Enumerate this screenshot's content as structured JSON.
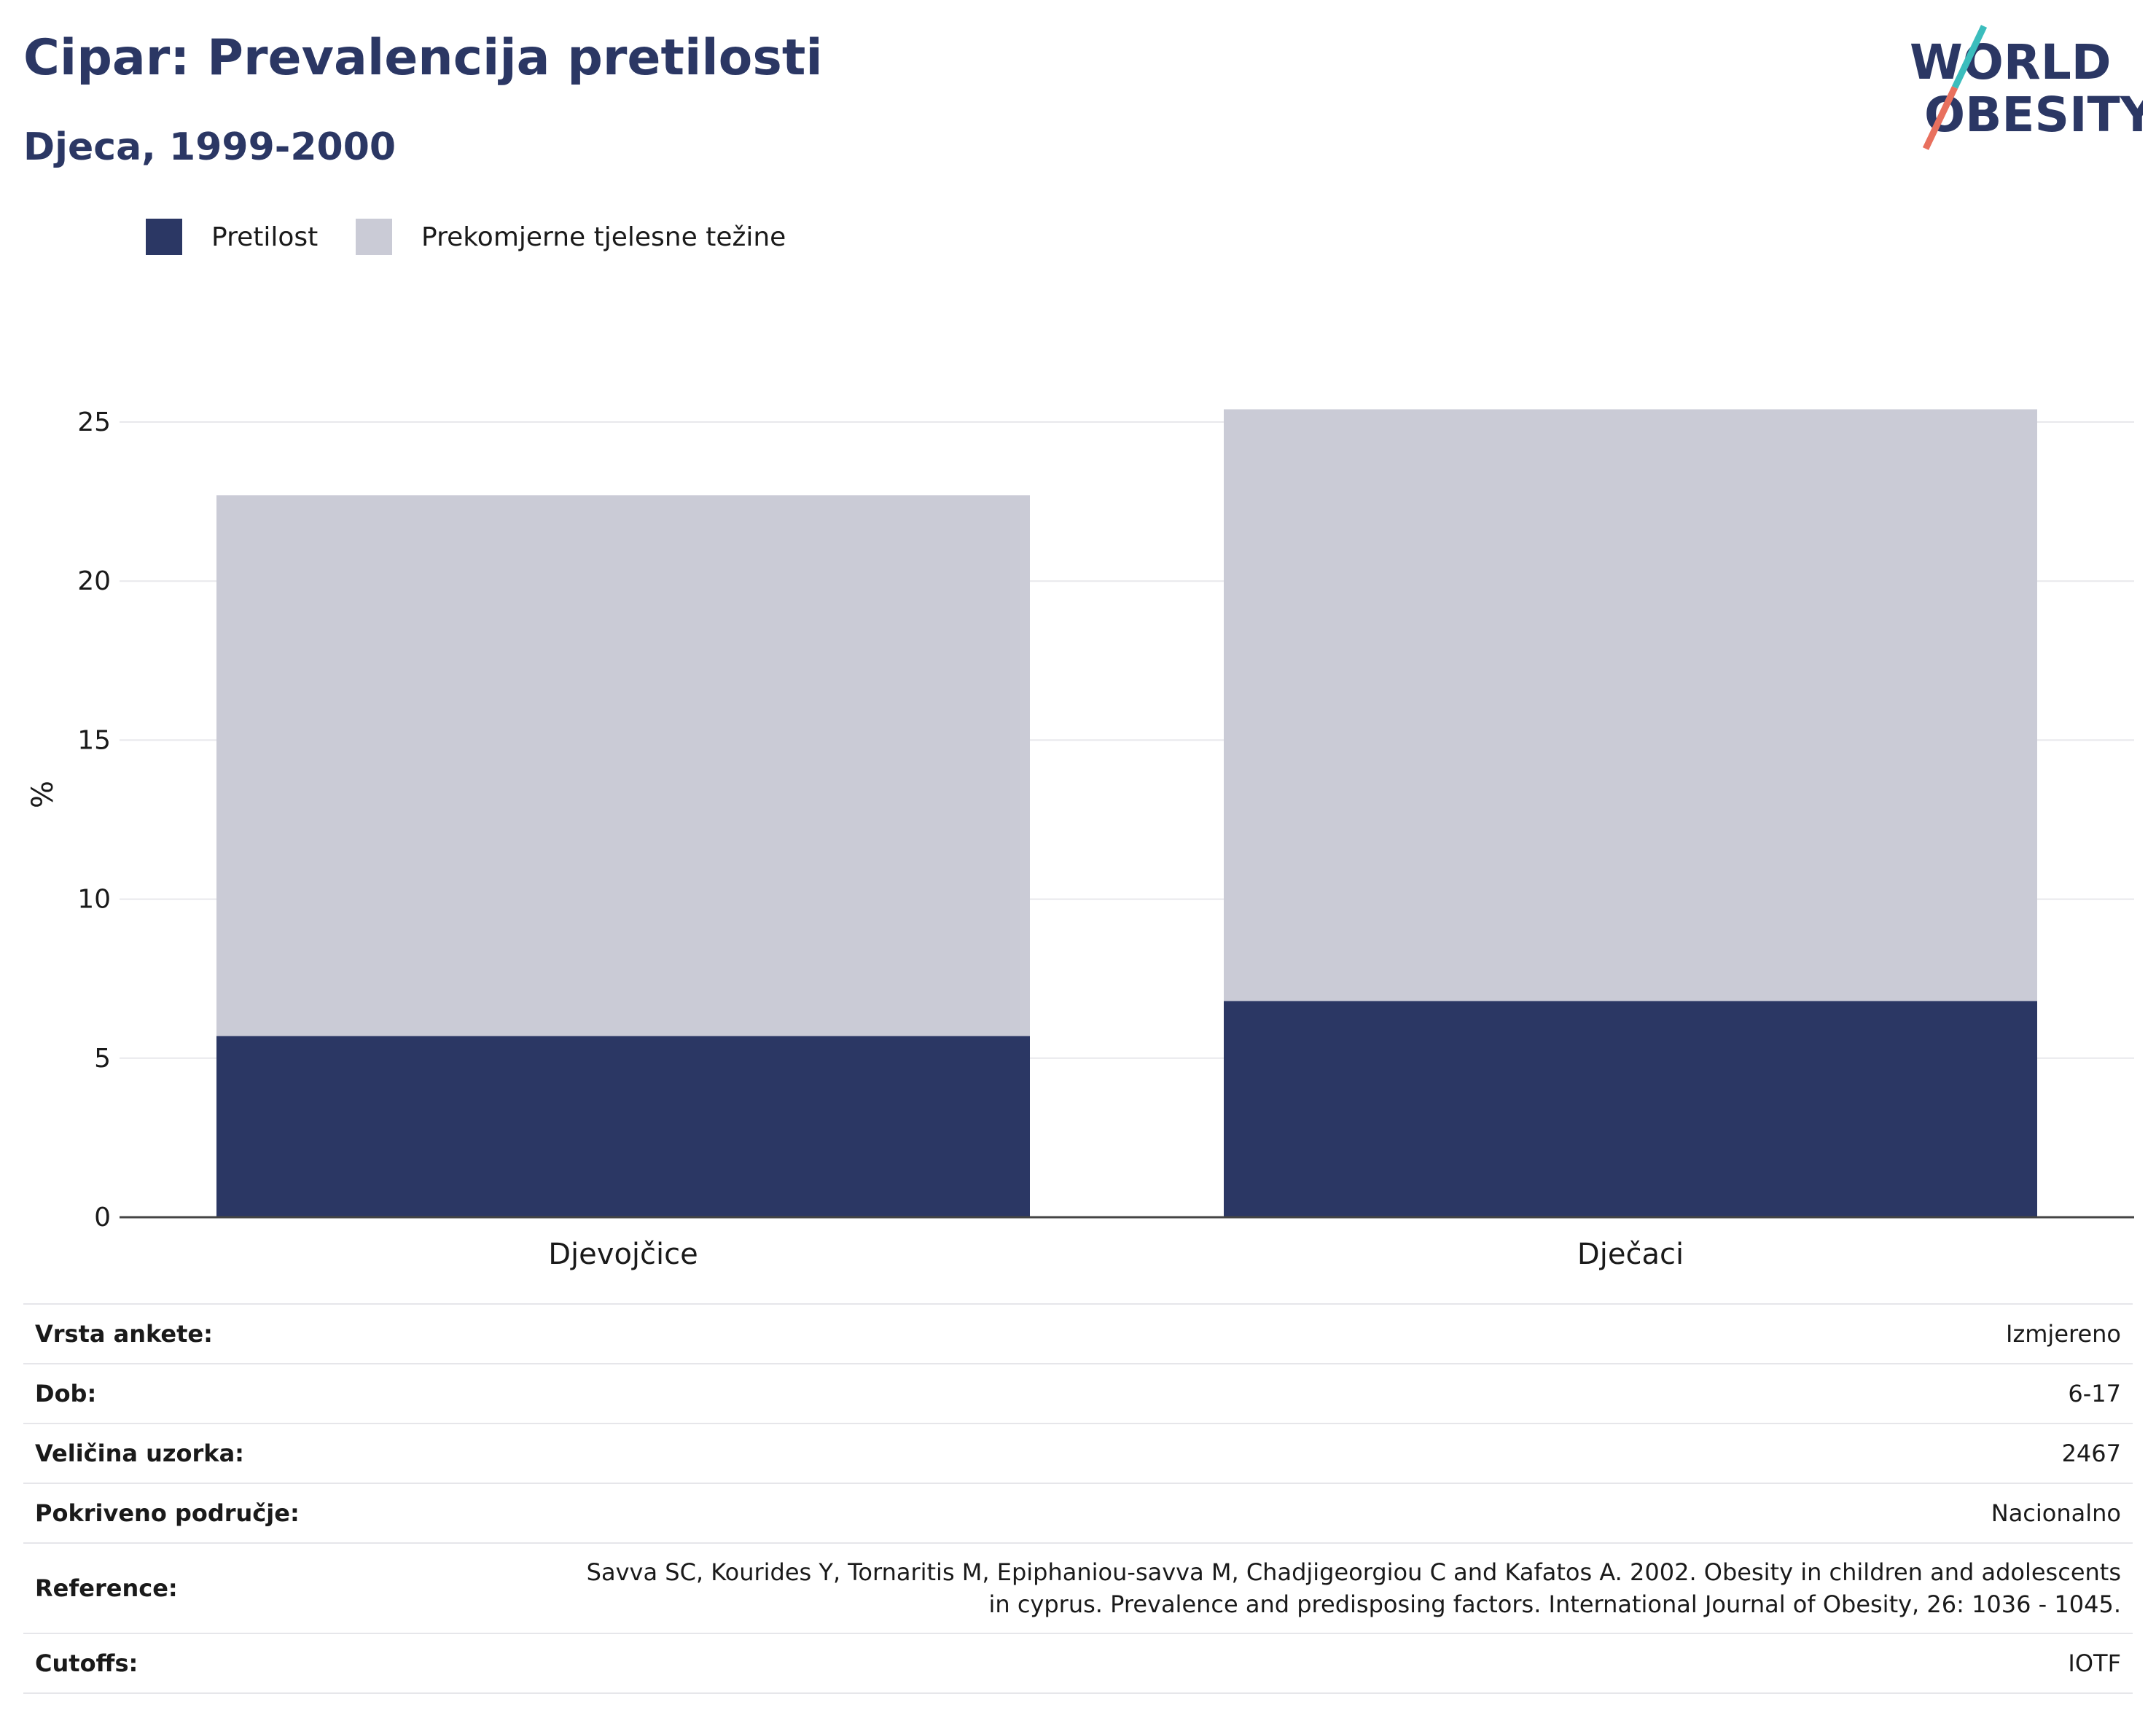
{
  "header": {
    "title": "Cipar: Prevalencija pretilosti",
    "subtitle": "Djeca, 1999-2000"
  },
  "logo": {
    "line1": "WORLD",
    "line2": "OBESITY"
  },
  "colors": {
    "obesity": "#2b3764",
    "overweight": "#cacbd6",
    "title": "#2b3764",
    "logo_teal": "#3bbdbd",
    "logo_coral": "#e8705e"
  },
  "chart_data": {
    "type": "bar",
    "stacked": true,
    "categories": [
      "Djevojčice",
      "Dječaci"
    ],
    "series": [
      {
        "name": "Pretilost",
        "values": [
          5.7,
          6.8
        ]
      },
      {
        "name": "Prekomjerne tjelesne težine",
        "values": [
          17.0,
          18.6
        ]
      }
    ],
    "ylabel": "%",
    "ylim": [
      0,
      27
    ],
    "yticks": [
      0,
      5,
      10,
      15,
      20,
      25
    ],
    "grid": true,
    "legend": "top-left"
  },
  "meta": [
    {
      "key": "Vrsta ankete:",
      "value": "Izmjereno"
    },
    {
      "key": "Dob:",
      "value": "6-17"
    },
    {
      "key": "Veličina uzorka:",
      "value": "2467"
    },
    {
      "key": "Pokriveno područje:",
      "value": "Nacionalno"
    },
    {
      "key": "Reference:",
      "value": "Savva SC, Kourides Y, Tornaritis M, Epiphaniou-savva M, Chadjigeorgiou C and Kafatos A. 2002. Obesity in children and adolescents in cyprus. Prevalence and predisposing factors. International Journal of Obesity, 26: 1036 - 1045."
    },
    {
      "key": "Cutoffs:",
      "value": "IOTF"
    }
  ]
}
